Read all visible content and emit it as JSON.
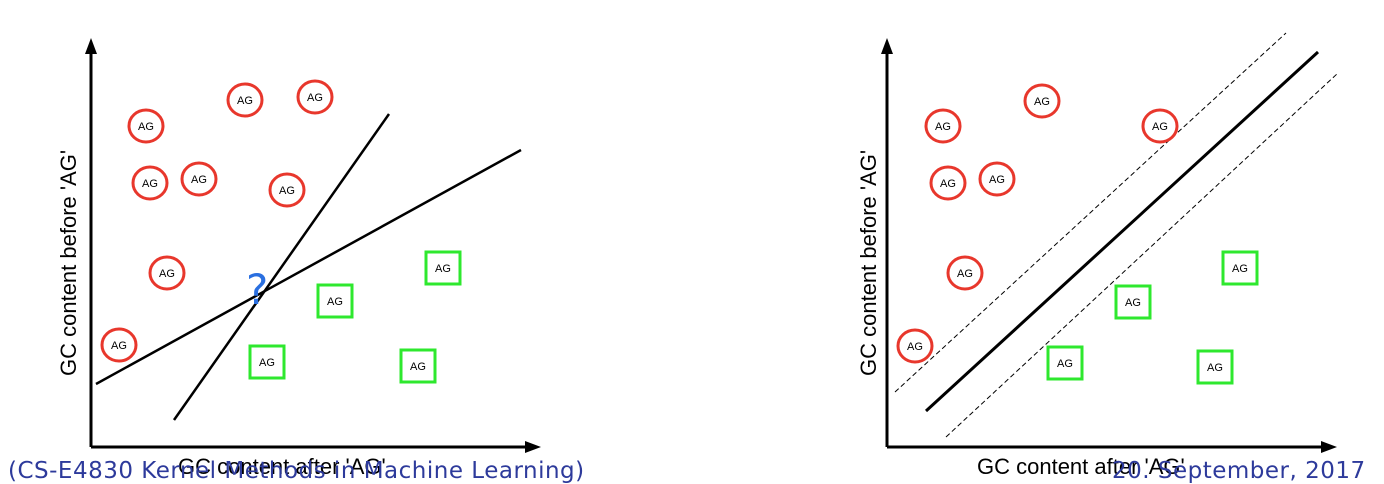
{
  "colors": {
    "circle_border": "#e8372c",
    "square_border": "#2ee82e",
    "question_mark": "#2a6fe0",
    "footer_text": "#2d3a9b"
  },
  "marker_text": "AG",
  "left_panel": {
    "x_label": "GC content after 'AG'",
    "y_label": "GC content before 'AG'",
    "question_mark": "?"
  },
  "right_panel": {
    "x_label": "GC content after 'AG'",
    "y_label": "GC content before 'AG'"
  },
  "footer": {
    "course": "(CS-E4830 Kernel Methods in Machine Learning)",
    "date": "20. September, 2017"
  }
}
